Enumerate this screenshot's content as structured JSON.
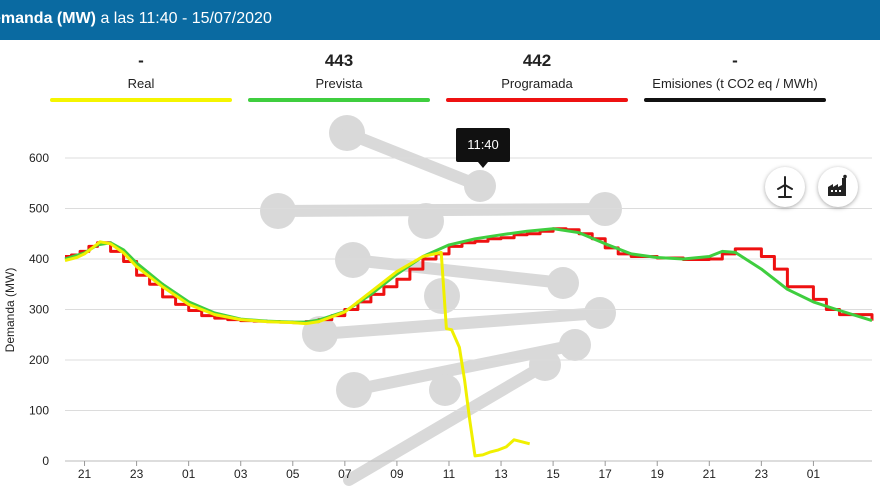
{
  "header": {
    "title_bold": "emanda (MW)",
    "title_rest": " a las 11:40 - 15/07/2020"
  },
  "stats": [
    {
      "value": "-",
      "label": "Real",
      "color": "#f5f500"
    },
    {
      "value": "443",
      "label": "Prevista",
      "color": "#3fce3f"
    },
    {
      "value": "442",
      "label": "Programada",
      "color": "#ee1111"
    },
    {
      "value": "-",
      "label": "Emisiones (t CO2 eq / MWh)",
      "color": "#111111"
    }
  ],
  "tooltip": "11:40",
  "icons": {
    "wind": "wind-turbine-icon",
    "factory": "factory-icon"
  },
  "chart_data": {
    "type": "line",
    "title": "Demanda (MW)",
    "xlabel": "",
    "ylabel": "Demanda (MW)",
    "ylim": [
      0,
      600
    ],
    "yticks": [
      0,
      100,
      200,
      300,
      400,
      500,
      600
    ],
    "xlim": [
      20.25,
      51.25
    ],
    "xticks": [
      21,
      23,
      25,
      27,
      29,
      31,
      33,
      35,
      37,
      39,
      41,
      43,
      45,
      47,
      49
    ],
    "xtick_labels": [
      "21",
      "23",
      "01",
      "03",
      "05",
      "07",
      "09",
      "11",
      "13",
      "15",
      "17",
      "19",
      "21",
      "23",
      "01"
    ],
    "grid": true,
    "series": [
      {
        "name": "Programada",
        "color": "#ee1111",
        "step": true,
        "x": [
          20.25,
          20.5,
          20.83,
          21.17,
          21.5,
          21.83,
          22,
          22.5,
          23,
          23.5,
          24,
          24.5,
          25,
          25.5,
          26,
          26.5,
          27,
          27.5,
          28,
          28.5,
          29,
          29.5,
          30,
          30.5,
          31,
          31.5,
          32,
          32.5,
          33,
          33.5,
          34,
          34.5,
          35,
          35.5,
          36,
          36.5,
          37,
          37.5,
          38,
          38.5,
          39,
          39.5,
          40,
          40.5,
          41,
          41.5,
          42,
          43,
          44,
          45,
          45.5,
          46,
          47,
          47.5,
          48,
          49,
          49.5,
          50,
          51.25
        ],
        "y": [
          405,
          408,
          415,
          425,
          432,
          432,
          415,
          395,
          368,
          350,
          325,
          310,
          298,
          288,
          283,
          280,
          278,
          277,
          276,
          275,
          274,
          276,
          280,
          288,
          300,
          315,
          330,
          345,
          360,
          380,
          400,
          410,
          425,
          432,
          435,
          440,
          442,
          448,
          450,
          455,
          460,
          458,
          450,
          440,
          422,
          410,
          405,
          402,
          399,
          400,
          410,
          420,
          405,
          380,
          345,
          320,
          300,
          290,
          278
        ]
      },
      {
        "name": "Prevista",
        "color": "#3fce3f",
        "step": false,
        "x": [
          20.25,
          21,
          21.5,
          22,
          22.5,
          23,
          24,
          25,
          26,
          27,
          28,
          29,
          29.5,
          30,
          31,
          32,
          33,
          34,
          35,
          36,
          37,
          38,
          39,
          40,
          41,
          42,
          43,
          44,
          45,
          45.5,
          46,
          47,
          48,
          49,
          50,
          51.25
        ],
        "y": [
          400,
          412,
          428,
          432,
          418,
          392,
          350,
          315,
          293,
          281,
          277,
          275,
          275,
          279,
          296,
          330,
          370,
          405,
          428,
          440,
          448,
          455,
          460,
          452,
          430,
          410,
          403,
          400,
          405,
          415,
          413,
          380,
          340,
          315,
          298,
          278
        ]
      },
      {
        "name": "Real",
        "color": "#f0f000",
        "step": false,
        "x": [
          20.25,
          20.7,
          21,
          21.3,
          21.6,
          22,
          22.5,
          23,
          24,
          25,
          26,
          27,
          28,
          29,
          29.5,
          30,
          31,
          32,
          33,
          34,
          34.7,
          34.9,
          35.1,
          35.4,
          35.6,
          35.8,
          36,
          36.3,
          36.6,
          36.9,
          37.2,
          37.5,
          37.8,
          38.1
        ],
        "y": [
          397,
          403,
          410,
          422,
          434,
          430,
          412,
          385,
          345,
          310,
          290,
          280,
          276,
          274,
          272,
          276,
          295,
          335,
          375,
          405,
          413,
          262,
          260,
          225,
          160,
          80,
          10,
          12,
          18,
          22,
          28,
          42,
          38,
          34
        ]
      }
    ]
  }
}
